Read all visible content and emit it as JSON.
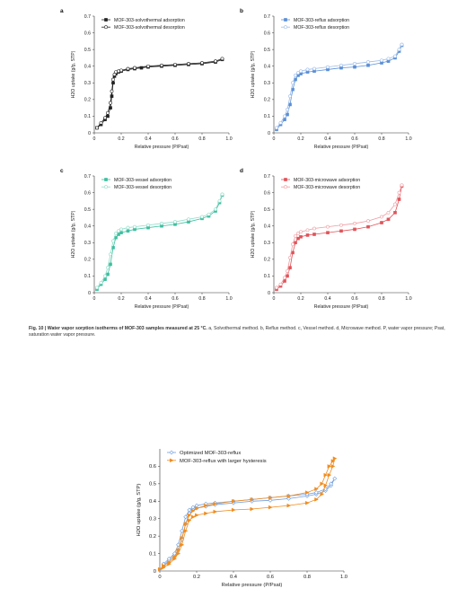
{
  "caption": {
    "title": "Fig. 10 | Water vapor sorption isotherms of MOF-303 samples measured at 25 °C.",
    "body": " a, Solvothermal method. b, Reflux method. c, Vessel method. d, Microwave method. P, water vapor pressure; Psat, saturation water vapor pressure."
  },
  "chart_data": [
    {
      "panel": "a",
      "type": "line",
      "xlabel": "Relative pressure (P/Psat)",
      "ylabel": "H2O uptake (g/g, STP)",
      "xlim": [
        0,
        1.0
      ],
      "ylim": [
        0,
        0.7
      ],
      "xticks": [
        "0",
        "0.2",
        "0.4",
        "0.6",
        "0.8",
        "1.0"
      ],
      "yticks": [
        "0",
        "0.1",
        "0.2",
        "0.3",
        "0.4",
        "0.5",
        "0.6",
        "0.7"
      ],
      "legend": "top-left",
      "series": [
        {
          "name": "MOF-303-solvothermal adsorption",
          "color": "#222222",
          "marker": "filled-square",
          "x": [
            0.02,
            0.05,
            0.08,
            0.1,
            0.12,
            0.13,
            0.14,
            0.15,
            0.16,
            0.18,
            0.2,
            0.25,
            0.3,
            0.35,
            0.4,
            0.5,
            0.6,
            0.7,
            0.8,
            0.9,
            0.95
          ],
          "y": [
            0.03,
            0.05,
            0.08,
            0.1,
            0.15,
            0.22,
            0.3,
            0.34,
            0.355,
            0.365,
            0.37,
            0.38,
            0.385,
            0.39,
            0.395,
            0.4,
            0.405,
            0.41,
            0.415,
            0.425,
            0.44
          ]
        },
        {
          "name": "MOF-303-solvothermal desorption",
          "color": "#222222",
          "marker": "open-circle",
          "x": [
            0.95,
            0.9,
            0.8,
            0.7,
            0.6,
            0.5,
            0.4,
            0.3,
            0.25,
            0.2,
            0.18,
            0.16,
            0.15,
            0.14,
            0.13,
            0.12,
            0.1,
            0.08,
            0.05,
            0.02
          ],
          "y": [
            0.445,
            0.43,
            0.42,
            0.415,
            0.41,
            0.405,
            0.4,
            0.39,
            0.385,
            0.375,
            0.37,
            0.365,
            0.35,
            0.32,
            0.25,
            0.18,
            0.12,
            0.09,
            0.06,
            0.03
          ]
        }
      ]
    },
    {
      "panel": "b",
      "type": "line",
      "xlabel": "Relative pressure (P/Psat)",
      "ylabel": "H2O uptake (g/g, STP)",
      "xlim": [
        0,
        1.0
      ],
      "ylim": [
        0,
        0.7
      ],
      "xticks": [
        "0",
        "0.2",
        "0.4",
        "0.6",
        "0.8",
        "1.0"
      ],
      "yticks": [
        "0",
        "0.1",
        "0.2",
        "0.3",
        "0.4",
        "0.5",
        "0.6",
        "0.7"
      ],
      "legend": "top-left",
      "series": [
        {
          "name": "MOF-303-reflux adsorption",
          "color": "#5b8fd6",
          "marker": "filled-square",
          "x": [
            0.02,
            0.05,
            0.08,
            0.1,
            0.12,
            0.14,
            0.16,
            0.18,
            0.2,
            0.25,
            0.3,
            0.4,
            0.5,
            0.6,
            0.7,
            0.8,
            0.85,
            0.9,
            0.93,
            0.95
          ],
          "y": [
            0.02,
            0.05,
            0.08,
            0.11,
            0.17,
            0.26,
            0.32,
            0.345,
            0.355,
            0.365,
            0.37,
            0.38,
            0.39,
            0.395,
            0.405,
            0.42,
            0.43,
            0.45,
            0.49,
            0.525
          ]
        },
        {
          "name": "MOF-303-reflux desorption",
          "color": "#9dbde8",
          "marker": "open-circle",
          "x": [
            0.95,
            0.93,
            0.9,
            0.85,
            0.8,
            0.7,
            0.6,
            0.5,
            0.4,
            0.3,
            0.25,
            0.2,
            0.18,
            0.16,
            0.14,
            0.12,
            0.1,
            0.08,
            0.05,
            0.02
          ],
          "y": [
            0.53,
            0.5,
            0.46,
            0.445,
            0.435,
            0.425,
            0.415,
            0.405,
            0.395,
            0.385,
            0.38,
            0.37,
            0.36,
            0.345,
            0.3,
            0.22,
            0.14,
            0.1,
            0.06,
            0.03
          ]
        }
      ]
    },
    {
      "panel": "c",
      "type": "line",
      "xlabel": "Relative pressure (P/Psat)",
      "ylabel": "H2O uptake (g/g, STP)",
      "xlim": [
        0,
        1.0
      ],
      "ylim": [
        0,
        0.7
      ],
      "xticks": [
        "0",
        "0.2",
        "0.4",
        "0.6",
        "0.8",
        "1.0"
      ],
      "yticks": [
        "0",
        "0.1",
        "0.2",
        "0.3",
        "0.4",
        "0.5",
        "0.6",
        "0.7"
      ],
      "legend": "top-left",
      "series": [
        {
          "name": "MOF-303-vessel adsorption",
          "color": "#3fbf9f",
          "marker": "filled-square",
          "x": [
            0.02,
            0.05,
            0.08,
            0.1,
            0.12,
            0.14,
            0.16,
            0.18,
            0.2,
            0.25,
            0.3,
            0.4,
            0.5,
            0.6,
            0.7,
            0.8,
            0.85,
            0.9,
            0.93,
            0.95
          ],
          "y": [
            0.02,
            0.05,
            0.08,
            0.11,
            0.17,
            0.27,
            0.33,
            0.35,
            0.36,
            0.37,
            0.38,
            0.39,
            0.4,
            0.41,
            0.425,
            0.445,
            0.46,
            0.49,
            0.54,
            0.585
          ]
        },
        {
          "name": "MOF-303-vessel desorption",
          "color": "#8fdcc8",
          "marker": "open-circle",
          "x": [
            0.95,
            0.93,
            0.9,
            0.85,
            0.8,
            0.7,
            0.6,
            0.5,
            0.4,
            0.3,
            0.25,
            0.2,
            0.18,
            0.16,
            0.14,
            0.12,
            0.1,
            0.08,
            0.05,
            0.02
          ],
          "y": [
            0.59,
            0.55,
            0.5,
            0.47,
            0.455,
            0.44,
            0.425,
            0.415,
            0.405,
            0.395,
            0.39,
            0.38,
            0.37,
            0.355,
            0.31,
            0.23,
            0.15,
            0.1,
            0.06,
            0.03
          ]
        }
      ]
    },
    {
      "panel": "d",
      "type": "line",
      "xlabel": "Relative pressure (P/Psat)",
      "ylabel": "H2O uptake (g/g, STP)",
      "xlim": [
        0,
        1.0
      ],
      "ylim": [
        0,
        0.7
      ],
      "xticks": [
        "0",
        "0.2",
        "0.4",
        "0.6",
        "0.8",
        "1.0"
      ],
      "yticks": [
        "0",
        "0.1",
        "0.2",
        "0.3",
        "0.4",
        "0.5",
        "0.6",
        "0.7"
      ],
      "legend": "top-left",
      "series": [
        {
          "name": "MOF-303-microwave adsorption",
          "color": "#e0545a",
          "marker": "filled-square",
          "x": [
            0.02,
            0.05,
            0.08,
            0.1,
            0.12,
            0.14,
            0.16,
            0.18,
            0.2,
            0.25,
            0.3,
            0.4,
            0.5,
            0.6,
            0.7,
            0.8,
            0.85,
            0.9,
            0.93,
            0.95
          ],
          "y": [
            0.02,
            0.04,
            0.07,
            0.1,
            0.15,
            0.24,
            0.3,
            0.325,
            0.335,
            0.345,
            0.35,
            0.36,
            0.37,
            0.38,
            0.395,
            0.42,
            0.44,
            0.48,
            0.56,
            0.64
          ]
        },
        {
          "name": "MOF-303-microwave desorption",
          "color": "#f09aa0",
          "marker": "open-circle",
          "x": [
            0.95,
            0.93,
            0.9,
            0.85,
            0.8,
            0.7,
            0.6,
            0.5,
            0.4,
            0.3,
            0.25,
            0.2,
            0.18,
            0.16,
            0.14,
            0.12,
            0.1,
            0.08,
            0.05,
            0.02
          ],
          "y": [
            0.645,
            0.6,
            0.53,
            0.48,
            0.455,
            0.43,
            0.415,
            0.405,
            0.395,
            0.385,
            0.375,
            0.365,
            0.355,
            0.34,
            0.29,
            0.21,
            0.13,
            0.09,
            0.05,
            0.03
          ]
        }
      ]
    },
    {
      "panel": "",
      "type": "line",
      "xlabel": "Relative pressure (P/Psat)",
      "ylabel": "H2O uptake (g/g, STP)",
      "xlim": [
        0,
        1.0
      ],
      "ylim": [
        0,
        0.7
      ],
      "xticks": [
        "0",
        "0.2",
        "0.4",
        "0.6",
        "0.8",
        "1.0"
      ],
      "yticks": [
        "0",
        "0.1",
        "0.2",
        "0.3",
        "0.4",
        "0.5",
        "0.6"
      ],
      "legend": "top-left",
      "series": [
        {
          "name": "Optimized MOF-303-reflux",
          "color": "#6f9fe0",
          "marker": "open-diamond",
          "x": [
            0.0,
            0.02,
            0.05,
            0.08,
            0.1,
            0.12,
            0.14,
            0.16,
            0.18,
            0.2,
            0.25,
            0.3,
            0.4,
            0.5,
            0.6,
            0.7,
            0.8,
            0.85,
            0.9,
            0.93,
            0.95,
            0.93,
            0.9,
            0.85,
            0.8,
            0.7,
            0.6,
            0.5,
            0.4,
            0.3,
            0.25,
            0.2,
            0.18,
            0.16,
            0.14,
            0.12,
            0.1,
            0.08,
            0.05,
            0.02
          ],
          "y": [
            0.01,
            0.03,
            0.06,
            0.09,
            0.12,
            0.18,
            0.27,
            0.33,
            0.35,
            0.36,
            0.37,
            0.38,
            0.39,
            0.4,
            0.405,
            0.415,
            0.43,
            0.44,
            0.46,
            0.49,
            0.53,
            0.5,
            0.47,
            0.45,
            0.44,
            0.43,
            0.42,
            0.41,
            0.4,
            0.39,
            0.385,
            0.375,
            0.365,
            0.35,
            0.31,
            0.23,
            0.15,
            0.1,
            0.07,
            0.04
          ]
        },
        {
          "name": "MOF-303-reflux with larger hysteresis",
          "color": "#f08c1e",
          "marker": "filled-triangle-right",
          "x": [
            0.0,
            0.02,
            0.05,
            0.08,
            0.1,
            0.12,
            0.14,
            0.16,
            0.18,
            0.2,
            0.25,
            0.3,
            0.4,
            0.5,
            0.6,
            0.7,
            0.8,
            0.85,
            0.88,
            0.9,
            0.92,
            0.94,
            0.95,
            0.94,
            0.92,
            0.9,
            0.88,
            0.85,
            0.8,
            0.7,
            0.6,
            0.5,
            0.4,
            0.3,
            0.25,
            0.2,
            0.18,
            0.16,
            0.14,
            0.12,
            0.1,
            0.08,
            0.05,
            0.02
          ],
          "y": [
            0.01,
            0.02,
            0.04,
            0.07,
            0.1,
            0.15,
            0.23,
            0.29,
            0.31,
            0.32,
            0.33,
            0.34,
            0.35,
            0.355,
            0.365,
            0.375,
            0.39,
            0.41,
            0.44,
            0.49,
            0.55,
            0.6,
            0.645,
            0.63,
            0.6,
            0.55,
            0.5,
            0.47,
            0.45,
            0.43,
            0.42,
            0.41,
            0.4,
            0.385,
            0.375,
            0.36,
            0.345,
            0.32,
            0.27,
            0.19,
            0.12,
            0.08,
            0.05,
            0.03
          ]
        }
      ]
    }
  ]
}
